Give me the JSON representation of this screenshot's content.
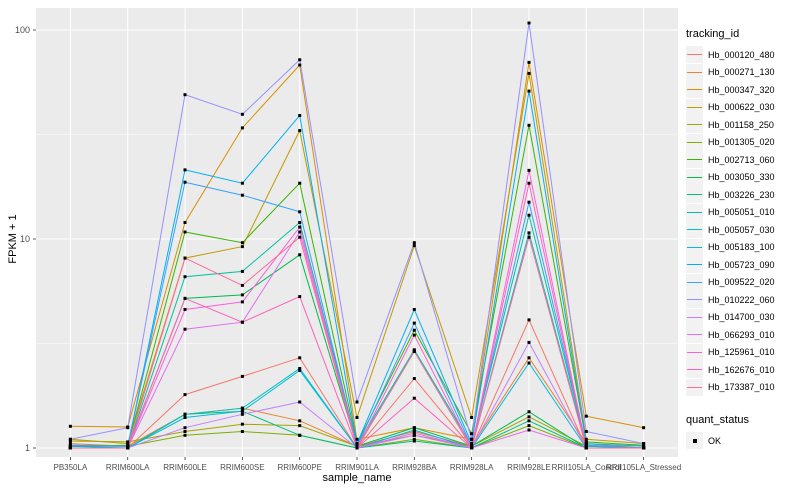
{
  "figure": {
    "panel_background": "#EBEBEB",
    "grid_color": "#FFFFFF",
    "tick_label_color": "#4D4D4D",
    "point_color": "#000000"
  },
  "chart_data": {
    "type": "line",
    "title": "",
    "xlabel": "sample_name",
    "ylabel": "FPKM + 1",
    "y_scale": "log10",
    "y_tick_labels": [
      "1",
      "10",
      "100"
    ],
    "y_tick_values": [
      1,
      10,
      100
    ],
    "y_minor_values": [
      3.1623,
      31.623
    ],
    "grid": true,
    "legend_position": "right",
    "point_marker": "black-square",
    "categories": [
      "PB350LA",
      "RRIM600LA",
      "RRIM600LE",
      "RRIM600SE",
      "RRIM600PE",
      "RRIM901LA",
      "RRIM928BA",
      "RRIM928LA",
      "RRIM928LE",
      "RRII105LA_Control",
      "RRII105LA_Stressed"
    ],
    "series": [
      {
        "name": "Hb_000120_480",
        "color": "#F8766D",
        "values": [
          1.0,
          1.0,
          1.8,
          2.2,
          2.7,
          1.0,
          2.15,
          1.0,
          4.1,
          1.0,
          1.0
        ]
      },
      {
        "name": "Hb_000271_130",
        "color": "#EA8331",
        "values": [
          1.05,
          1.02,
          1.45,
          1.55,
          1.35,
          1.02,
          1.2,
          1.02,
          2.7,
          1.05,
          1.0
        ]
      },
      {
        "name": "Hb_000347_320",
        "color": "#D89000",
        "values": [
          1.27,
          1.26,
          12.0,
          34.0,
          68.0,
          1.1,
          1.25,
          1.1,
          70.0,
          1.42,
          1.25
        ]
      },
      {
        "name": "Hb_000622_030",
        "color": "#C09B00",
        "values": [
          1.1,
          1.05,
          8.1,
          9.2,
          33.0,
          1.4,
          9.3,
          1.4,
          62.0,
          1.1,
          1.05
        ]
      },
      {
        "name": "Hb_001158_250",
        "color": "#A3A500",
        "values": [
          1.08,
          1.07,
          1.2,
          1.3,
          1.28,
          1.02,
          1.15,
          1.02,
          1.41,
          1.02,
          1.0
        ]
      },
      {
        "name": "Hb_001305_020",
        "color": "#7CAE00",
        "values": [
          1.03,
          1.02,
          1.15,
          1.2,
          1.15,
          1.0,
          1.1,
          1.0,
          1.28,
          1.0,
          1.0
        ]
      },
      {
        "name": "Hb_002713_060",
        "color": "#39B600",
        "values": [
          1.02,
          1.03,
          10.8,
          9.6,
          18.5,
          1.05,
          3.66,
          1.17,
          35.0,
          1.07,
          1.03
        ]
      },
      {
        "name": "Hb_003050_330",
        "color": "#00BB4E",
        "values": [
          1.0,
          1.0,
          5.2,
          5.4,
          8.4,
          1.02,
          1.25,
          1.02,
          1.49,
          1.0,
          1.0
        ]
      },
      {
        "name": "Hb_003226_230",
        "color": "#00BF7D",
        "values": [
          1.0,
          1.0,
          1.45,
          1.5,
          1.15,
          1.0,
          1.08,
          1.0,
          1.35,
          1.0,
          1.0
        ]
      },
      {
        "name": "Hb_005051_010",
        "color": "#00C1A3",
        "values": [
          1.02,
          1.0,
          6.6,
          7.0,
          12.0,
          1.03,
          2.95,
          1.03,
          13.0,
          1.03,
          1.0
        ]
      },
      {
        "name": "Hb_005057_030",
        "color": "#00BFC4",
        "values": [
          1.0,
          1.0,
          1.45,
          1.55,
          2.4,
          1.0,
          2.9,
          1.0,
          10.7,
          1.02,
          1.0
        ]
      },
      {
        "name": "Hb_005183_100",
        "color": "#00BAE0",
        "values": [
          1.0,
          1.0,
          1.4,
          1.5,
          2.35,
          1.0,
          1.22,
          1.0,
          2.55,
          1.0,
          1.0
        ]
      },
      {
        "name": "Hb_005723_090",
        "color": "#00B0F6",
        "values": [
          1.02,
          1.02,
          21.4,
          18.5,
          39.0,
          1.05,
          4.6,
          1.05,
          51.0,
          1.05,
          1.02
        ]
      },
      {
        "name": "Hb_009522_020",
        "color": "#35A2FF",
        "values": [
          1.03,
          1.02,
          18.7,
          16.2,
          13.5,
          1.02,
          3.96,
          1.02,
          15.0,
          1.03,
          1.0
        ]
      },
      {
        "name": "Hb_010222_060",
        "color": "#9590FF",
        "values": [
          1.1,
          1.25,
          49.0,
          39.5,
          72.0,
          1.66,
          9.6,
          1.1,
          108.0,
          1.2,
          1.05
        ]
      },
      {
        "name": "Hb_014700_030",
        "color": "#C77CFF",
        "values": [
          1.0,
          1.0,
          1.25,
          1.45,
          1.66,
          1.0,
          1.15,
          1.0,
          3.2,
          1.0,
          1.0
        ]
      },
      {
        "name": "Hb_066293_010",
        "color": "#E76BF3",
        "values": [
          1.0,
          1.0,
          3.7,
          4.0,
          10.8,
          1.0,
          1.18,
          1.0,
          1.22,
          1.0,
          1.0
        ]
      },
      {
        "name": "Hb_125961_010",
        "color": "#FA62DB",
        "values": [
          1.0,
          1.0,
          4.6,
          5.0,
          11.4,
          1.0,
          3.47,
          1.0,
          21.3,
          1.0,
          1.0
        ]
      },
      {
        "name": "Hb_162676_010",
        "color": "#FF62BC",
        "values": [
          1.0,
          1.0,
          5.2,
          4.0,
          5.3,
          1.0,
          1.73,
          1.0,
          18.5,
          1.0,
          1.0
        ]
      },
      {
        "name": "Hb_173387_010",
        "color": "#FF6A98",
        "values": [
          1.0,
          1.0,
          8.1,
          6.0,
          10.2,
          1.0,
          2.9,
          1.0,
          10.2,
          1.0,
          1.0
        ]
      }
    ]
  },
  "legend": {
    "title": "tracking_id"
  },
  "legend2": {
    "title": "quant_status",
    "items": [
      {
        "label": "OK",
        "marker": "black-square"
      }
    ]
  }
}
